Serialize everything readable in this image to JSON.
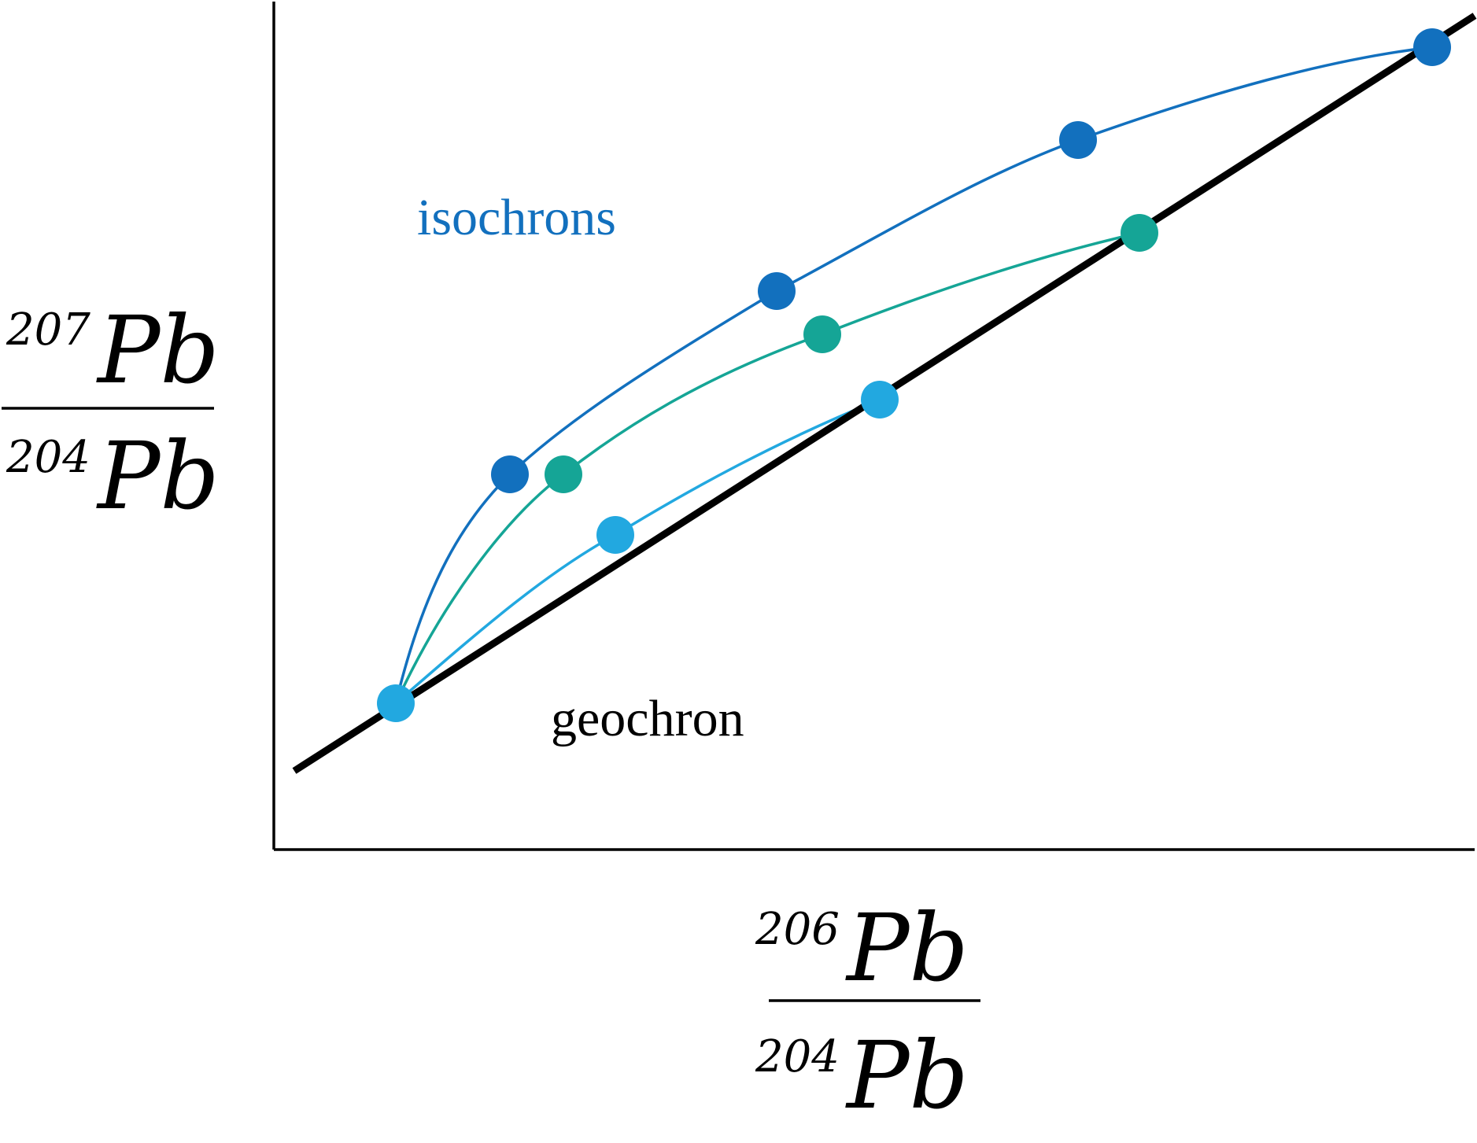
{
  "diagram": {
    "labels": {
      "isochrons": "isochrons",
      "geochron": "geochron"
    },
    "y_axis": {
      "numerator_mass": "207",
      "denominator_mass": "204",
      "element": "Pb"
    },
    "x_axis": {
      "numerator_mass": "206",
      "denominator_mass": "204",
      "element": "Pb"
    },
    "colors": {
      "isochron_dark": "#1270be",
      "isochron_teal": "#15a596",
      "isochron_light": "#22a8e0",
      "geochron": "#000000",
      "axes": "#000000"
    },
    "isochrons": [
      {
        "id": "dark",
        "color_key": "isochron_dark",
        "point_count": 5
      },
      {
        "id": "teal",
        "color_key": "isochron_teal",
        "point_count": 4
      },
      {
        "id": "light",
        "color_key": "isochron_light",
        "point_count": 3
      }
    ]
  }
}
